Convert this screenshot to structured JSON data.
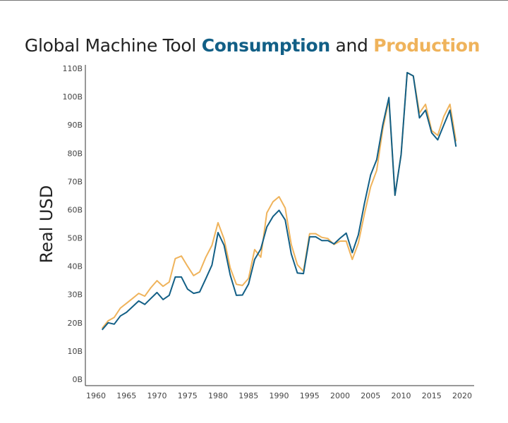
{
  "chart_data": {
    "type": "line",
    "title_parts": [
      "Global Machine Tool ",
      "Consumption",
      " and ",
      "Production"
    ],
    "ylabel": "Real USD",
    "xlabel": "",
    "xlim": [
      1960,
      2020
    ],
    "ylim": [
      0,
      110
    ],
    "x_ticks": [
      "1960",
      "1965",
      "1970",
      "1975",
      "1980",
      "1985",
      "1990",
      "1995",
      "2000",
      "2005",
      "2010",
      "2015",
      "2020"
    ],
    "y_ticks": [
      "0B",
      "10B",
      "20B",
      "30B",
      "40B",
      "50B",
      "60B",
      "70B",
      "80B",
      "90B",
      "100B",
      "110B"
    ],
    "grid": false,
    "legend": "in title (colored words)",
    "x": [
      1961,
      1962,
      1963,
      1964,
      1965,
      1966,
      1967,
      1968,
      1969,
      1970,
      1971,
      1972,
      1973,
      1974,
      1975,
      1976,
      1977,
      1978,
      1979,
      1980,
      1981,
      1982,
      1983,
      1984,
      1985,
      1986,
      1987,
      1988,
      1989,
      1990,
      1991,
      1992,
      1993,
      1994,
      1995,
      1996,
      1997,
      1998,
      1999,
      2000,
      2001,
      2002,
      2003,
      2004,
      2005,
      2006,
      2007,
      2008,
      2009,
      2010,
      2011,
      2012,
      2013,
      2014,
      2015,
      2016,
      2017,
      2018,
      2019
    ],
    "series": [
      {
        "name": "Consumption",
        "color": "#125f86",
        "values": [
          17.5,
          20,
          19.5,
          22.4,
          23.7,
          25.7,
          27.7,
          26.5,
          28.6,
          30.7,
          28.2,
          29.7,
          36.2,
          36.2,
          31.9,
          30.4,
          30.9,
          35.6,
          40.4,
          51.9,
          47.4,
          36.9,
          29.7,
          29.8,
          33.7,
          42.4,
          46.1,
          53.9,
          57.6,
          59.8,
          56.4,
          44.4,
          37.6,
          37.4,
          50.4,
          50.4,
          49.1,
          49.1,
          47.9,
          49.9,
          51.7,
          44.8,
          51.1,
          62.3,
          72.3,
          77.7,
          90.0,
          99.7,
          65.1,
          79.5,
          108.5,
          107.3,
          92.5,
          95.2,
          87.2,
          84.7,
          90.0,
          95.2,
          82.3
        ]
      },
      {
        "name": "Production",
        "color": "#efb35b",
        "values": [
          18,
          20.7,
          21.9,
          25.2,
          26.9,
          28.6,
          30.4,
          29.4,
          32.4,
          34.9,
          32.9,
          34.4,
          42.7,
          43.6,
          40.0,
          36.7,
          38.0,
          43.2,
          47.4,
          55.4,
          49.6,
          39.4,
          33.6,
          33.2,
          35.7,
          45.9,
          43.2,
          58.9,
          62.8,
          64.6,
          60.6,
          47.7,
          40.5,
          38.2,
          51.5,
          51.5,
          50.2,
          49.8,
          47.7,
          48.9,
          48.9,
          42.4,
          48.2,
          58.6,
          68.1,
          73.9,
          88.5,
          98.9,
          65.1,
          79.5,
          108.5,
          107.3,
          94.2,
          97.3,
          88.0,
          86.3,
          93.0,
          97.3,
          84.2
        ]
      }
    ]
  }
}
